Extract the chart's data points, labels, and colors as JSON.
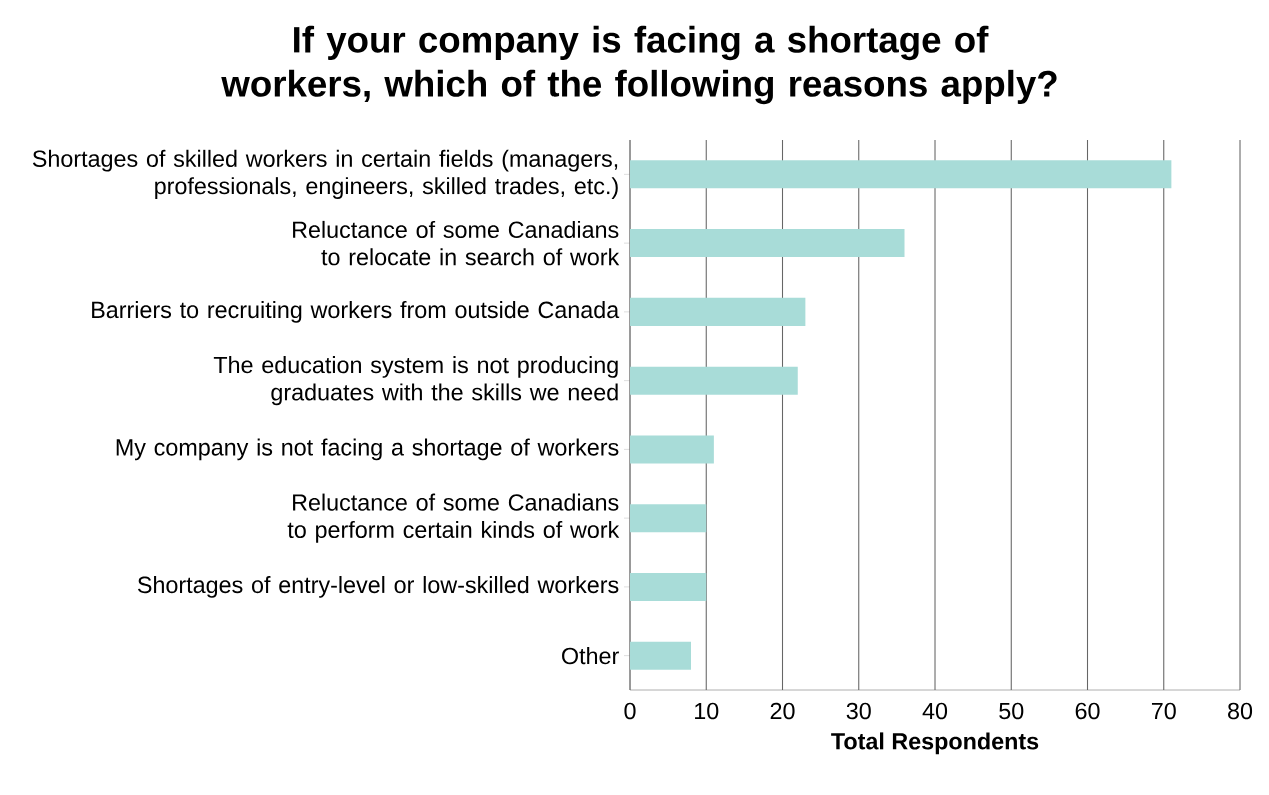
{
  "chart_data": {
    "type": "bar",
    "orientation": "horizontal",
    "title": "If your company is facing a shortage of workers, which of the following reasons apply?",
    "xlabel": "Total Respondents",
    "categories": [
      "Shortages of skilled workers in certain fields (managers, professionals, engineers, skilled trades, etc.)",
      "Reluctance of some Canadians to relocate in search of work",
      "Barriers to recruiting workers from outside Canada",
      "The education system is not producing graduates with the skills we need",
      "My company is not facing a shortage of workers",
      "Reluctance of some Canadians to perform certain kinds of work",
      "Shortages of entry-level or low-skilled workers",
      "Other"
    ],
    "values": [
      71,
      36,
      23,
      22,
      11,
      10,
      10,
      8
    ],
    "color": "#a8dcd8",
    "xlim": [
      0,
      80
    ],
    "xticks": [
      0,
      10,
      20,
      30,
      40,
      50,
      60,
      70,
      80
    ],
    "grid": "x"
  }
}
